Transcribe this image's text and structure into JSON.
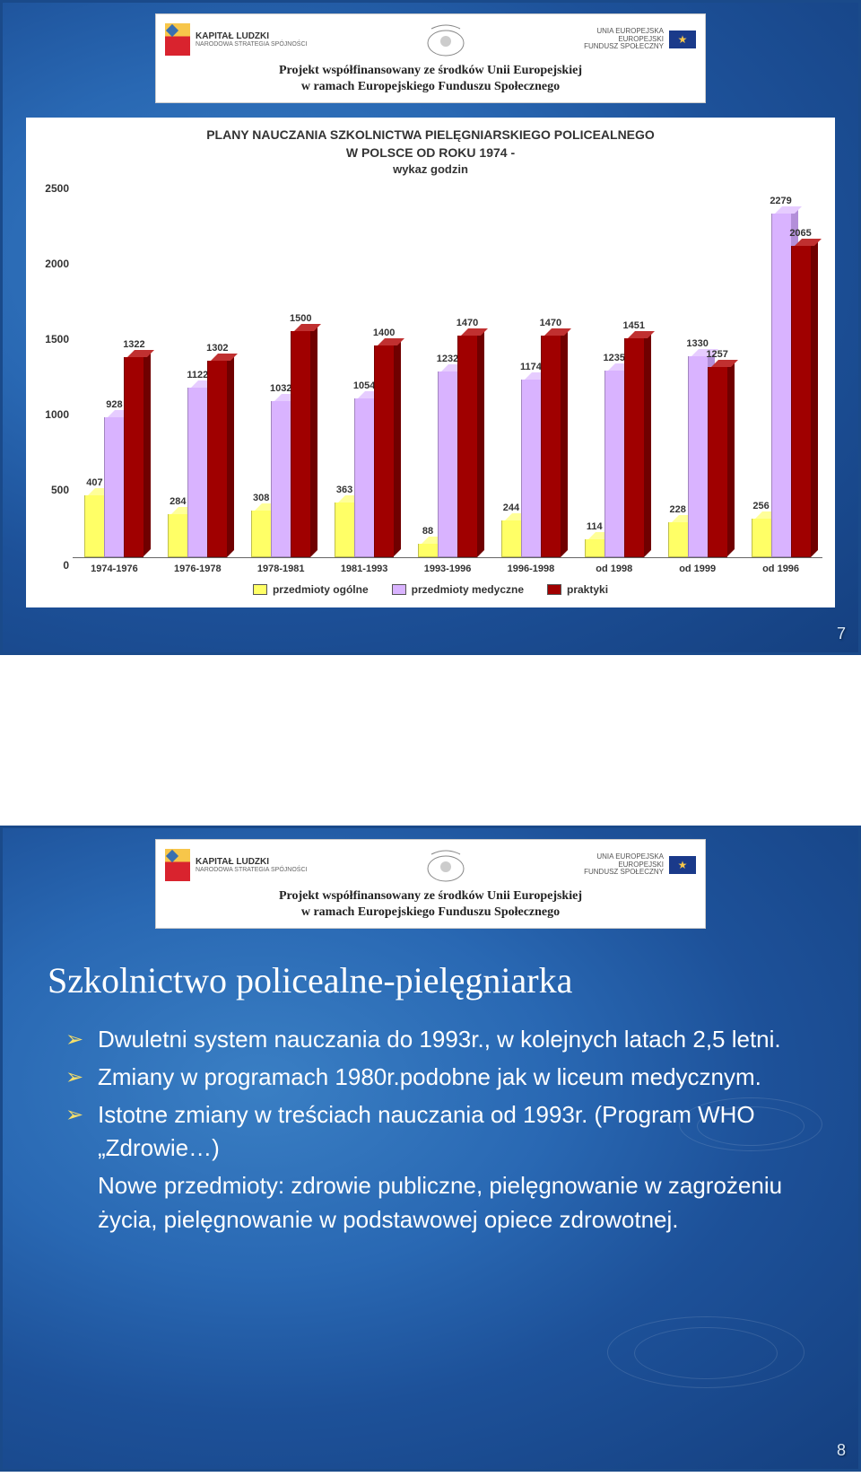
{
  "banner": {
    "kl_label": "KAPITAŁ LUDZKI",
    "kl_sub": "NARODOWA STRATEGIA SPÓJNOŚCI",
    "eu_label": "UNIA EUROPEJSKA",
    "eu_sub1": "EUROPEJSKI",
    "eu_sub2": "FUNDUSZ SPOŁECZNY",
    "caption_l1": "Projekt współfinansowany ze środków Unii Europejskiej",
    "caption_l2": "w ramach Europejskiego Funduszu Społecznego"
  },
  "chart": {
    "title_l1": "PLANY NAUCZANIA SZKOLNICTWA PIELĘGNIARSKIEGO POLICEALNEGO",
    "title_l2": "W POLSCE OD ROKU 1974 -",
    "subtitle": "wykaz godzin",
    "ymax": 2500,
    "ytick_step": 500,
    "yticks": [
      "0",
      "500",
      "1000",
      "1500",
      "2000",
      "2500"
    ],
    "categories": [
      "1974-1976",
      "1976-1978",
      "1978-1981",
      "1981-1993",
      "1993-1996",
      "1996-1998",
      "od 1998",
      "od 1999",
      "od 1996"
    ],
    "series": [
      {
        "name": "przedmioty ogólne",
        "color_front": "#ffff66",
        "color_top": "#ffff99",
        "color_side": "#d9d933",
        "values": [
          407,
          284,
          308,
          363,
          88,
          244,
          114,
          228,
          256
        ]
      },
      {
        "name": "przedmioty medyczne",
        "color_front": "#d9b3ff",
        "color_top": "#e6ccff",
        "color_side": "#b38fd9",
        "values": [
          928,
          1122,
          1032,
          1054,
          1232,
          1174,
          1235,
          1330,
          2279
        ]
      },
      {
        "name": "praktyki",
        "color_front": "#a00000",
        "color_top": "#c03030",
        "color_side": "#700000",
        "values": [
          1322,
          1302,
          1500,
          1400,
          1470,
          1470,
          1451,
          1257,
          2065
        ]
      }
    ],
    "legend_labels": [
      "przedmioty ogólne",
      "przedmioty medyczne",
      "praktyki"
    ],
    "background_color": "#ffffff"
  },
  "page_numbers": {
    "slide1": "7",
    "slide2": "8"
  },
  "slide2": {
    "title": "Szkolnictwo policealne-pielęgniarka",
    "items": [
      "Dwuletni system nauczania do 1993r., w kolejnych latach 2,5 letni.",
      "Zmiany w programach 1980r.podobne jak w liceum medycznym.",
      "Istotne zmiany w treściach nauczania od 1993r. (Program WHO „Zdrowie…)"
    ],
    "sub": "Nowe przedmioty: zdrowie publiczne, pielęgnowanie w zagrożeniu życia, pielęgnowanie w podstawowej opiece zdrowotnej."
  }
}
